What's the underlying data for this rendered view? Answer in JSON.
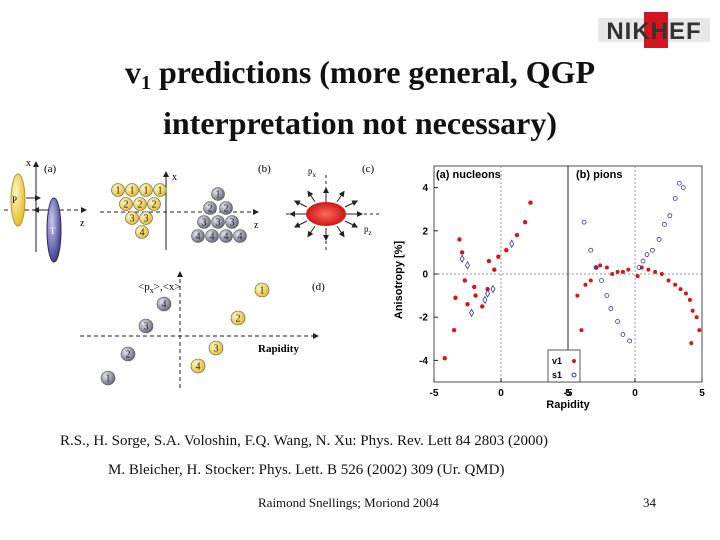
{
  "logo": {
    "letters": "NIKHEF",
    "brand_color": "#d4141e"
  },
  "title": {
    "v": "v",
    "sub": "1",
    "rest_line1": " predictions (more general, QGP",
    "line2": "interpretation not necessary)"
  },
  "diagram": {
    "label_a": "(a)",
    "label_b": "(b)",
    "label_c": "(c)",
    "label_d": "(d)",
    "axis_x": "x",
    "axis_z": "z",
    "axis_px": "p",
    "axis_px_sub": "x",
    "axis_pzpy": "p",
    "axis_pzpy_sub": "z",
    "proj_p": "P",
    "proj_t": "T",
    "d_ylabel": "<p",
    "d_ylabel_sub": "x",
    "d_ylabel_end": ">,<x>",
    "d_xlabel": "Rapidity",
    "rows": [
      [
        "1",
        "1",
        "1",
        "1"
      ],
      [
        "2",
        "2",
        "2"
      ],
      [
        "3",
        "3"
      ],
      [
        "4"
      ]
    ],
    "gray_digits": [
      "4",
      "3",
      "2",
      "1"
    ],
    "gray_points": [
      "4",
      "3",
      "2",
      "1"
    ],
    "yellow_points": [
      "1",
      "2",
      "3",
      "4"
    ]
  },
  "chart_data": {
    "type": "scatter",
    "panels": [
      {
        "label": "(a) nucleons",
        "x_range": [
          -5,
          5
        ],
        "series": [
          {
            "name": "v1",
            "marker": "filled-red-star",
            "points": [
              [
                -4.2,
                -3.9
              ],
              [
                -3.5,
                -2.6
              ],
              [
                -3.4,
                -1.1
              ],
              [
                -3.1,
                1.6
              ],
              [
                -2.9,
                1.0
              ],
              [
                -2.7,
                -0.3
              ],
              [
                -2.5,
                -1.4
              ],
              [
                -2.0,
                -0.6
              ],
              [
                -1.9,
                -1.0
              ],
              [
                -1.4,
                -1.5
              ],
              [
                -1.0,
                -0.7
              ],
              [
                -0.9,
                0.6
              ],
              [
                -0.5,
                0.2
              ],
              [
                -0.2,
                0.8
              ],
              [
                0.4,
                1.1
              ],
              [
                1.2,
                1.8
              ],
              [
                1.8,
                2.4
              ],
              [
                2.2,
                3.3
              ]
            ]
          },
          {
            "name": "s1",
            "marker": "open-blue-diamond",
            "points": [
              [
                -2.9,
                0.7
              ],
              [
                -2.5,
                0.4
              ],
              [
                -2.2,
                -1.8
              ],
              [
                -1.2,
                -1.2
              ],
              [
                -1.0,
                -0.9
              ],
              [
                -0.6,
                -0.7
              ],
              [
                0.8,
                1.4
              ]
            ]
          }
        ]
      },
      {
        "label": "(b) pions",
        "x_range": [
          -5,
          5
        ],
        "series": [
          {
            "name": "v1",
            "marker": "filled-red-dot",
            "points": [
              [
                -4.3,
                -1.0
              ],
              [
                -4.0,
                -2.6
              ],
              [
                -3.7,
                -0.5
              ],
              [
                -3.3,
                -0.3
              ],
              [
                -2.9,
                0.3
              ],
              [
                -2.6,
                0.4
              ],
              [
                -2.1,
                0.3
              ],
              [
                -1.7,
                0.0
              ],
              [
                -1.3,
                0.1
              ],
              [
                -0.9,
                0.1
              ],
              [
                -0.5,
                0.2
              ],
              [
                0.2,
                -0.1
              ],
              [
                0.5,
                0.3
              ],
              [
                1.0,
                0.2
              ],
              [
                1.5,
                0.1
              ],
              [
                2.0,
                0.0
              ],
              [
                2.5,
                -0.3
              ],
              [
                3.0,
                -0.5
              ],
              [
                3.4,
                -0.7
              ],
              [
                3.8,
                -0.9
              ],
              [
                4.1,
                -1.2
              ],
              [
                4.3,
                -1.7
              ],
              [
                4.6,
                -2.0
              ],
              [
                4.8,
                -2.6
              ],
              [
                4.2,
                -3.2
              ]
            ]
          },
          {
            "name": "s1",
            "marker": "open-blue-circle",
            "points": [
              [
                -3.8,
                2.4
              ],
              [
                -3.3,
                1.1
              ],
              [
                -2.9,
                0.3
              ],
              [
                -2.5,
                -0.3
              ],
              [
                -2.1,
                -1.0
              ],
              [
                -1.8,
                -1.6
              ],
              [
                -1.3,
                -2.2
              ],
              [
                -0.9,
                -2.8
              ],
              [
                -0.4,
                -3.1
              ],
              [
                0.3,
                0.3
              ],
              [
                0.6,
                0.6
              ],
              [
                0.9,
                0.9
              ],
              [
                1.3,
                1.1
              ],
              [
                1.8,
                1.6
              ],
              [
                2.2,
                2.3
              ],
              [
                2.6,
                2.7
              ],
              [
                3.0,
                3.5
              ],
              [
                3.3,
                4.2
              ],
              [
                3.6,
                4.0
              ]
            ]
          }
        ]
      }
    ],
    "ylim": [
      -5,
      5
    ],
    "yticks": [
      "-4",
      "-2",
      "0",
      "2",
      "4"
    ],
    "xticks": [
      "-5",
      "0",
      "5"
    ],
    "xlabel": "Rapidity",
    "ylabel": "Anisotropy [%]",
    "legend": [
      "v1",
      "s1"
    ]
  },
  "references": {
    "line1": "R.S., H. Sorge, S.A. Voloshin, F.Q. Wang, N. Xu: Phys. Rev. Lett 84 2803 (2000)",
    "line2": "M. Bleicher, H. Stocker: Phys. Lett. B 526 (2002) 309 (Ur. QMD)"
  },
  "footer": {
    "author": "Raimond Snellings; Moriond 2004",
    "page": "34"
  }
}
